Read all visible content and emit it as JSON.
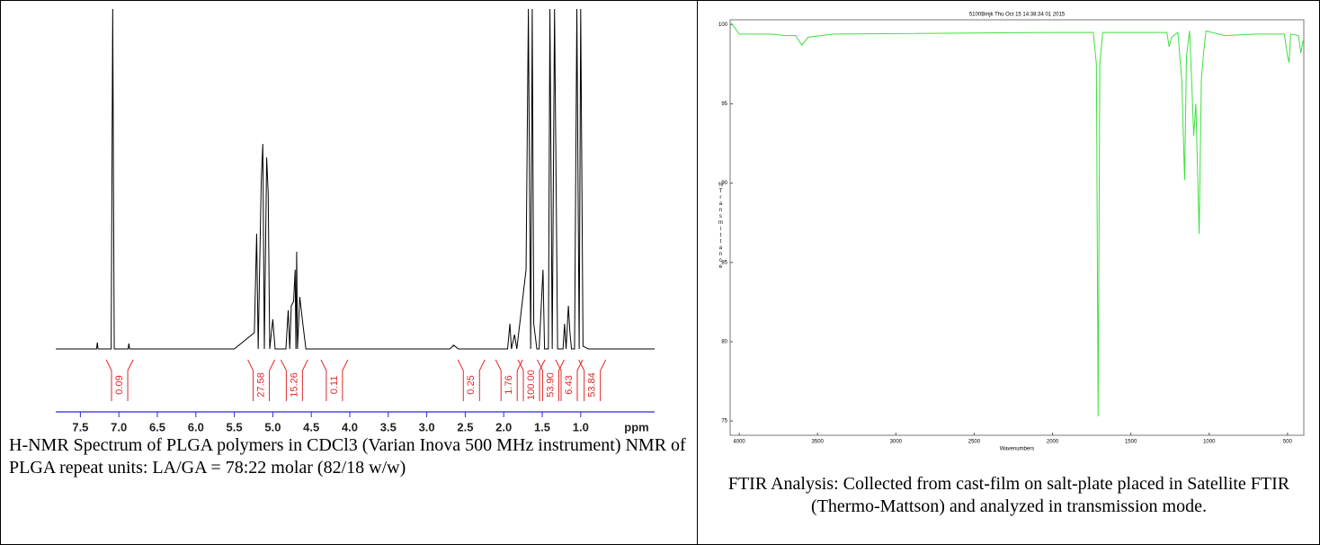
{
  "chart_data": [
    {
      "type": "line",
      "caption": "H-NMR Spectrum of PLGA polymers in CDCl3 (Varian Inova 500 MHz instrument) NMR of PLGA repeat units: LA/GA = 78:22 molar (82/18 w/w)",
      "xlabel": "ppm",
      "color": "#000000",
      "axis_color": "#2b2bd6",
      "xlim": [
        7.82,
        0.04
      ],
      "ylim": [
        0,
        100
      ],
      "xticks": [
        7.5,
        {
          "value": 7,
          "label": "7.0"
        },
        6.5,
        {
          "value": 6,
          "label": "6.0"
        },
        5.5,
        {
          "value": 5,
          "label": "5.0"
        },
        4.5,
        {
          "value": 4,
          "label": "4.0"
        },
        3.5,
        {
          "value": 3,
          "label": "3.0"
        },
        2.5,
        {
          "value": 2,
          "label": "2.0"
        },
        1.5,
        {
          "value": 1,
          "label": "1.0"
        }
      ],
      "x": [
        7.82,
        7.29,
        7.28,
        7.27,
        7.1,
        7.08,
        7.06,
        6.88,
        6.87,
        6.86,
        5.5,
        5.24,
        5.21,
        5.19,
        5.15,
        5.13,
        5.11,
        5.08,
        5.06,
        5.04,
        5.0,
        4.97,
        4.83,
        4.8,
        4.78,
        4.76,
        4.73,
        4.71,
        4.7,
        4.69,
        4.68,
        4.65,
        4.63,
        4.61,
        4.57,
        2.7,
        2.65,
        2.59,
        1.95,
        1.92,
        1.9,
        1.86,
        1.83,
        1.71,
        1.68,
        1.65,
        1.63,
        1.61,
        1.57,
        1.54,
        1.49,
        1.47,
        1.42,
        1.4,
        1.37,
        1.34,
        1.3,
        1.23,
        1.21,
        1.19,
        1.16,
        1.14,
        1.12,
        1.08,
        1.05,
        1.02,
        1.0,
        0.97,
        0.9,
        0.04
      ],
      "values": [
        0,
        0,
        1.9,
        0,
        0,
        100,
        0,
        0,
        1.6,
        0,
        0,
        4.8,
        33.9,
        0,
        49.7,
        60.3,
        0,
        56.3,
        45.8,
        0,
        8.7,
        0,
        0,
        11.4,
        0,
        12.7,
        14.0,
        23.3,
        0,
        28.6,
        0,
        15.3,
        11.4,
        7.4,
        0,
        0,
        1.1,
        0,
        0,
        7.4,
        0,
        4.2,
        0,
        23.3,
        100,
        0,
        100,
        7.4,
        0,
        0,
        23.3,
        0,
        0,
        100,
        0,
        100,
        0,
        0,
        7.4,
        0,
        12.7,
        4.8,
        0,
        0,
        100,
        0,
        100,
        0.8,
        0,
        0
      ],
      "integrals": {
        "color": "#e02828",
        "x": [
          6.99,
          5.15,
          4.72,
          4.2,
          2.42,
          1.93,
          1.64,
          1.39,
          1.15,
          0.85
        ],
        "values": [
          0.09,
          27.58,
          15.26,
          0.11,
          0.25,
          1.76,
          100,
          53.9,
          6.43,
          53.84
        ],
        "value_labels": [
          "0.09",
          "27.58",
          "15.26",
          "0.11",
          "0.25",
          "1.76",
          "100.00",
          "53.90",
          "6.43",
          "53.84"
        ]
      }
    },
    {
      "type": "line",
      "caption": "FTIR Analysis: Collected from cast-film on salt-plate placed in Satellite FTIR (Thermo-Mattson) and analyzed in transmission mode.",
      "title": "5100Bmjk   Thu Oct 15 14:38:34 01 2015",
      "xlabel": "Wavenumbers",
      "ylabel": "%Transmittance",
      "color": "#3ee03e",
      "xlim": [
        4058,
        396
      ],
      "ylim": [
        74.1,
        100.3
      ],
      "xticks": [
        4000,
        3500,
        3000,
        2500,
        2000,
        1500,
        1000,
        500
      ],
      "yticks": [
        75,
        80,
        85,
        90,
        95,
        100
      ],
      "x": [
        4050,
        4000,
        3800,
        3700,
        3640,
        3600,
        3560,
        3400,
        2000,
        1740,
        1720,
        1709,
        1698,
        1680,
        1270,
        1256,
        1240,
        1200,
        1175,
        1157,
        1145,
        1125,
        1110,
        1099,
        1085,
        1064,
        1050,
        1035,
        1020,
        900,
        700,
        520,
        500,
        490,
        480,
        430,
        415,
        400
      ],
      "values": [
        100.1,
        99.4,
        99.4,
        99.3,
        99.3,
        98.7,
        99.2,
        99.4,
        99.5,
        99.5,
        97.5,
        75.3,
        97.5,
        99.5,
        99.5,
        98.6,
        99.2,
        99.5,
        96.5,
        90.2,
        98,
        99.6,
        96,
        93,
        95,
        86.8,
        96.5,
        98.3,
        99.6,
        99.3,
        99.4,
        99.4,
        98,
        97.6,
        99.4,
        99.3,
        98.2,
        99
      ]
    }
  ]
}
